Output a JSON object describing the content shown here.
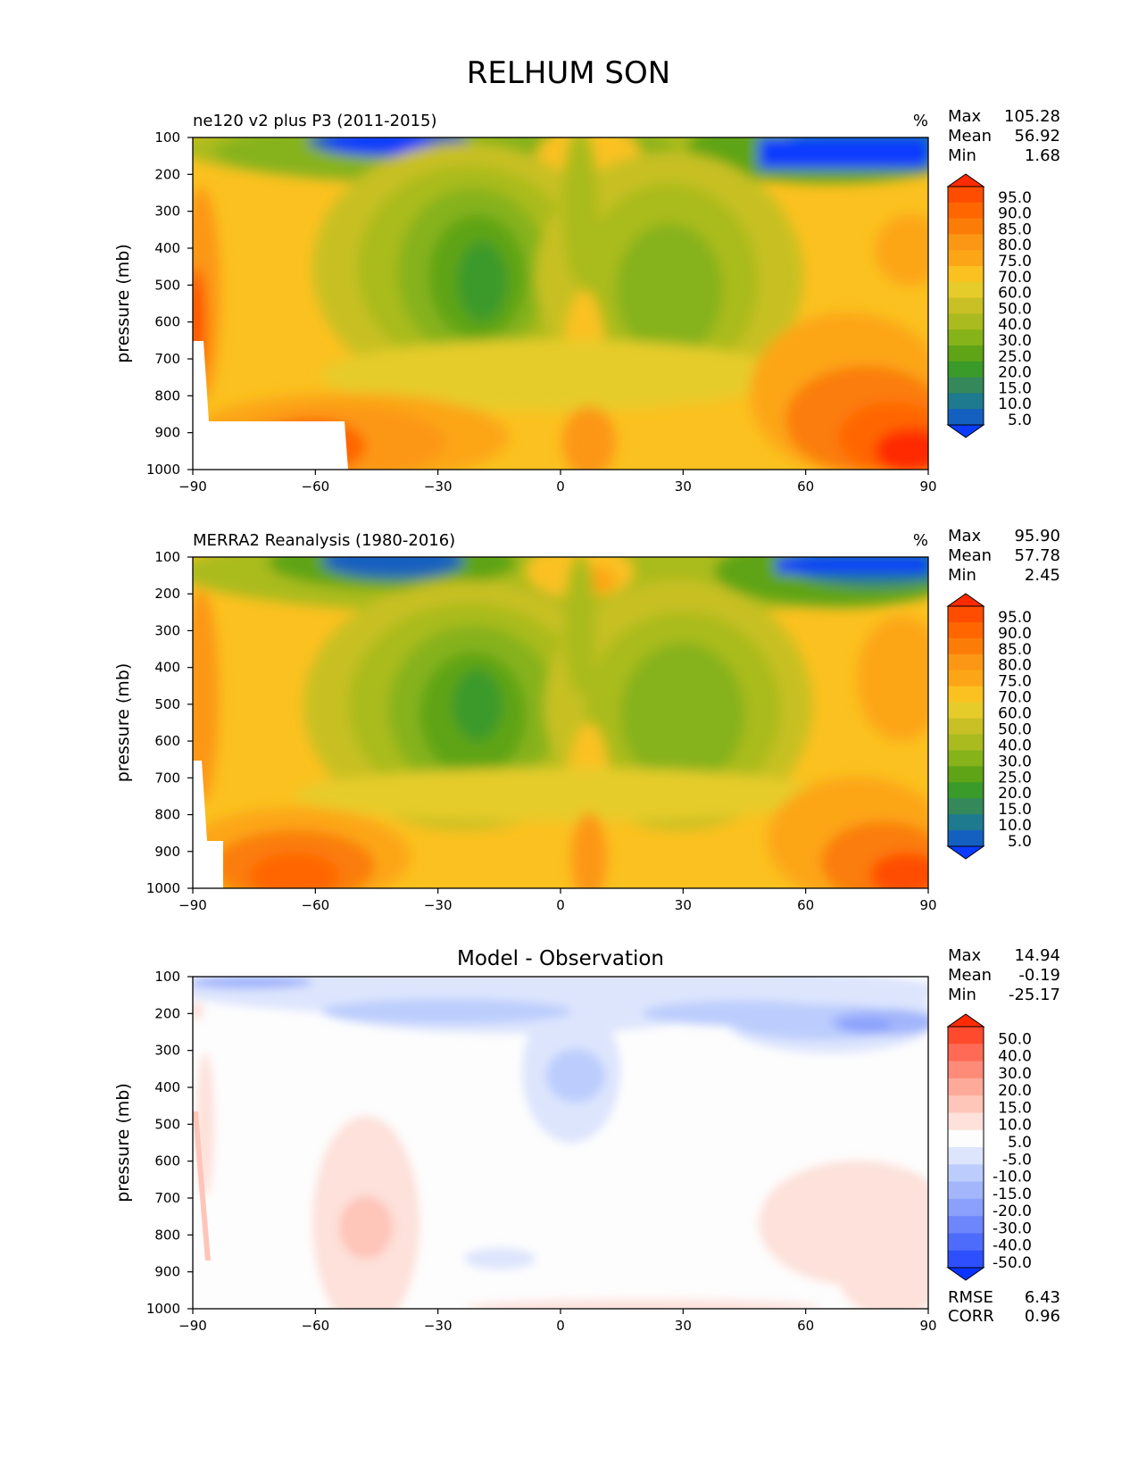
{
  "title": "RELHUM SON",
  "units": "%",
  "ylabel": "pressure (mb)",
  "stats_labels": {
    "max": "Max",
    "mean": "Mean",
    "min": "Min",
    "rmse": "RMSE",
    "corr": "CORR"
  },
  "chart_data": [
    {
      "type": "contour",
      "title": "ne120 v2 plus P3 (2011-2015)",
      "units": "%",
      "xlabel": "",
      "ylabel": "pressure (mb)",
      "x_ticks": [
        "−90",
        "−60",
        "−30",
        "0",
        "30",
        "60",
        "90"
      ],
      "y_ticks": [
        "100",
        "200",
        "300",
        "400",
        "500",
        "600",
        "700",
        "800",
        "900",
        "1000"
      ],
      "xlim": [
        -90,
        90
      ],
      "ylim": [
        1000,
        100
      ],
      "stats": {
        "max": "105.28",
        "mean": "56.92",
        "min": "1.68"
      },
      "colorbar": {
        "levels": [
          "95.0",
          "90.0",
          "85.0",
          "80.0",
          "75.0",
          "70.0",
          "60.0",
          "50.0",
          "40.0",
          "30.0",
          "25.0",
          "20.0",
          "15.0",
          "10.0",
          "5.0"
        ],
        "colors": [
          "#ff2a00",
          "#ff4d00",
          "#ff6600",
          "#fb7d08",
          "#fc9716",
          "#fca617",
          "#fbc120",
          "#e6cc2a",
          "#c8c024",
          "#aabb1f",
          "#86b21a",
          "#5ea416",
          "#3a9a2a",
          "#34885a",
          "#1e7a8e",
          "#1460c0",
          "#0a3bff"
        ]
      }
    },
    {
      "type": "contour",
      "title": "MERRA2 Reanalysis (1980-2016)",
      "units": "%",
      "xlabel": "",
      "ylabel": "pressure (mb)",
      "x_ticks": [
        "−90",
        "−60",
        "−30",
        "0",
        "30",
        "60",
        "90"
      ],
      "y_ticks": [
        "100",
        "200",
        "300",
        "400",
        "500",
        "600",
        "700",
        "800",
        "900",
        "1000"
      ],
      "xlim": [
        -90,
        90
      ],
      "ylim": [
        1000,
        100
      ],
      "stats": {
        "max": "95.90",
        "mean": "57.78",
        "min": "2.45"
      },
      "colorbar": {
        "levels": [
          "95.0",
          "90.0",
          "85.0",
          "80.0",
          "75.0",
          "70.0",
          "60.0",
          "50.0",
          "40.0",
          "30.0",
          "25.0",
          "20.0",
          "15.0",
          "10.0",
          "5.0"
        ],
        "colors": [
          "#ff2a00",
          "#ff4d00",
          "#ff6600",
          "#fb7d08",
          "#fc9716",
          "#fca617",
          "#fbc120",
          "#e6cc2a",
          "#c8c024",
          "#aabb1f",
          "#86b21a",
          "#5ea416",
          "#3a9a2a",
          "#34885a",
          "#1e7a8e",
          "#1460c0",
          "#0a3bff"
        ]
      }
    },
    {
      "type": "contour",
      "title": "Model - Observation",
      "units": "",
      "xlabel": "",
      "ylabel": "pressure (mb)",
      "x_ticks": [
        "−90",
        "−60",
        "−30",
        "0",
        "30",
        "60",
        "90"
      ],
      "y_ticks": [
        "100",
        "200",
        "300",
        "400",
        "500",
        "600",
        "700",
        "800",
        "900",
        "1000"
      ],
      "xlim": [
        -90,
        90
      ],
      "ylim": [
        1000,
        100
      ],
      "stats": {
        "max": "14.94",
        "mean": "-0.19",
        "min": "-25.17",
        "rmse": "6.43",
        "corr": "0.96"
      },
      "colorbar": {
        "levels": [
          "50.0",
          "40.0",
          "30.0",
          "20.0",
          "15.0",
          "10.0",
          "5.0",
          "-5.0",
          "-10.0",
          "-15.0",
          "-20.0",
          "-30.0",
          "-40.0",
          "-50.0"
        ],
        "colors": [
          "#ff2a00",
          "#ff4a2e",
          "#fe6a55",
          "#fe8a78",
          "#feaa9b",
          "#fec5b9",
          "#fde1da",
          "#fdfdfd",
          "#dde5fd",
          "#bccdfd",
          "#a3b6fc",
          "#8aa0fc",
          "#6e86fb",
          "#4e6cfb",
          "#2d4ffd",
          "#0a33ff"
        ]
      }
    }
  ]
}
